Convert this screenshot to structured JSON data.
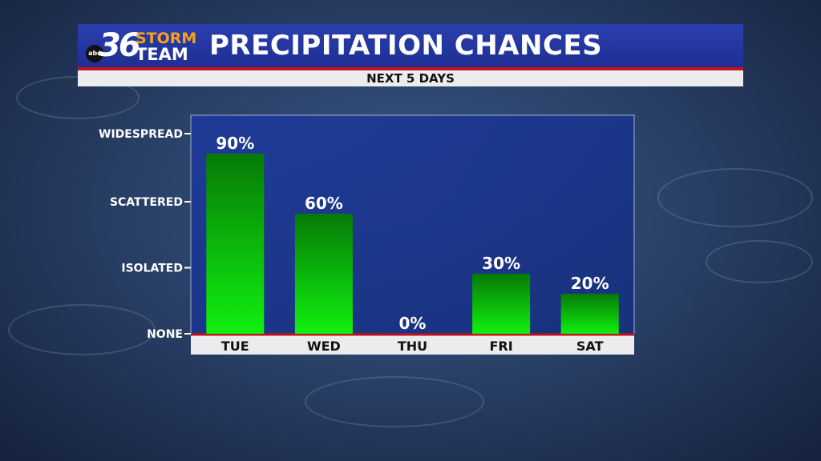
{
  "header": {
    "logo_abc": "abc",
    "logo_number": "36",
    "logo_storm": "STORM",
    "logo_team": "TEAM",
    "title": "PRECIPITATION CHANCES",
    "subtitle": "NEXT 5 DAYS"
  },
  "colors": {
    "header_blue": "#2236a3",
    "accent_red": "#c5121a",
    "bar_top": "#067a06",
    "bar_bottom": "#10f010",
    "plot_bg": "#1c3c98"
  },
  "chart_data": {
    "type": "bar",
    "title": "PRECIPITATION CHANCES",
    "subtitle": "NEXT 5 DAYS",
    "categories": [
      "TUE",
      "WED",
      "THU",
      "FRI",
      "SAT"
    ],
    "values": [
      90,
      60,
      0,
      30,
      20
    ],
    "value_labels": [
      "90%",
      "60%",
      "0%",
      "30%",
      "20%"
    ],
    "ylim": [
      0,
      100
    ],
    "y_ticks": [
      {
        "value": 0,
        "label": "NONE"
      },
      {
        "value": 33,
        "label": "ISOLATED"
      },
      {
        "value": 66,
        "label": "SCATTERED"
      },
      {
        "value": 100,
        "label": "WIDESPREAD"
      }
    ],
    "grid": false,
    "legend": "none"
  }
}
